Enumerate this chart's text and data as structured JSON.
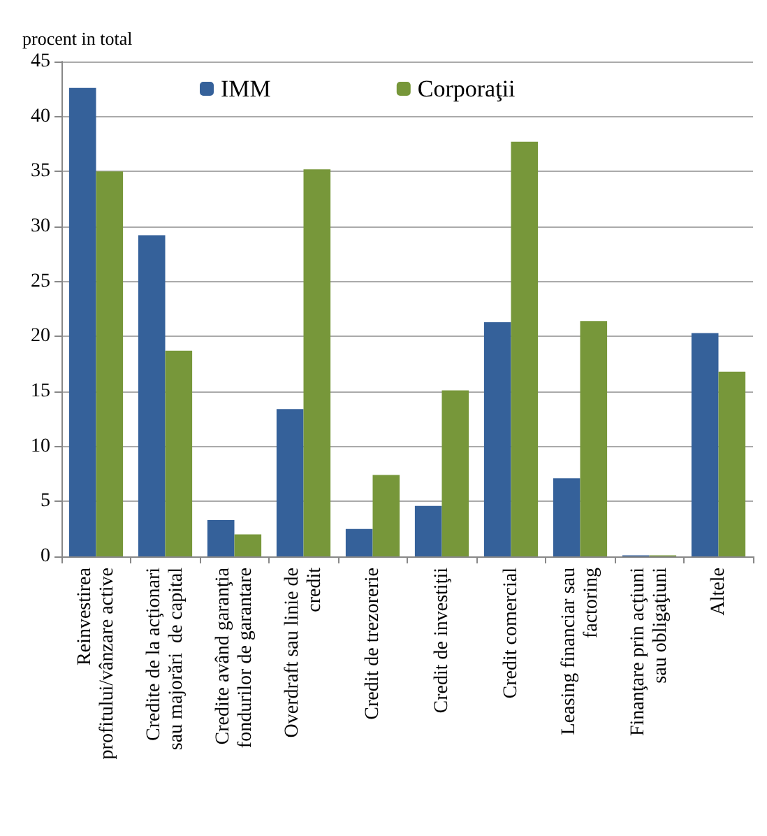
{
  "chart_data": {
    "type": "bar",
    "ylabel": "procent in total",
    "categories": [
      "Reinvestirea\nprofitului/vânzare active",
      "Credite de la acţionari\nsau majorări  de capital",
      "Credite având garanţia\nfondurilor de garantare",
      "Overdraft sau linie de\ncredit",
      "Credit de trezorerie",
      "Credit de investiţii",
      "Credit comercial",
      "Leasing financiar sau\nfactoring",
      "Finanţare prin acţiuni\nsau obligaţiuni",
      "Altele"
    ],
    "series": [
      {
        "name": "IMM",
        "color": "#35619a",
        "values": [
          42.6,
          29.2,
          3.3,
          13.4,
          2.5,
          4.6,
          21.3,
          7.1,
          0.1,
          20.3
        ]
      },
      {
        "name": "Corporaţii",
        "color": "#77973a",
        "values": [
          35.0,
          18.7,
          2.0,
          35.2,
          7.4,
          15.1,
          37.7,
          21.4,
          0.1,
          16.8
        ]
      }
    ],
    "ylim": [
      0,
      45
    ],
    "yticks": [
      0,
      5,
      10,
      15,
      20,
      25,
      30,
      35,
      40,
      45
    ],
    "grid": "y",
    "legend": "top"
  }
}
